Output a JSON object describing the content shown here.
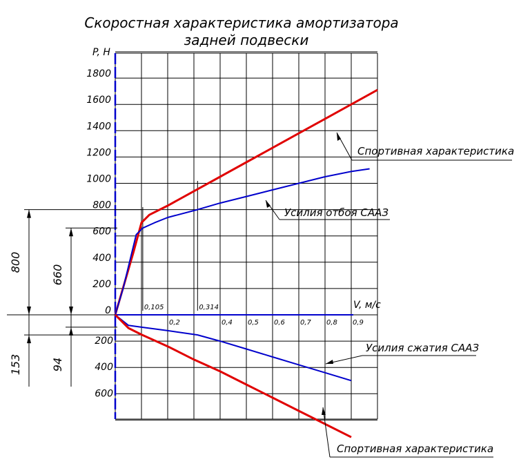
{
  "chart_data": {
    "type": "line",
    "title": "Скоростная характеристика амортизатора",
    "subtitle": "задней подвески",
    "ylabel": "P, Н",
    "xlabel": "V, м/с",
    "xlim": [
      0,
      1.0
    ],
    "ylim": [
      -800,
      2000
    ],
    "grid": true,
    "y_ticks_positive": [
      "1800",
      "1600",
      "1400",
      "1200",
      "1000",
      "800",
      "600",
      "400",
      "200",
      "0"
    ],
    "y_ticks_negative": [
      "200",
      "400",
      "600"
    ],
    "x_ticks": [
      "0,105",
      "0,2",
      "0,314",
      "0,4",
      "0,5",
      "0,6",
      "0,7",
      "0,8",
      "0,9"
    ],
    "x_ticks_values": [
      0.105,
      0.2,
      0.314,
      0.4,
      0.5,
      0.6,
      0.7,
      0.8,
      0.9
    ],
    "series": [
      {
        "name": "Спортивная характеристика",
        "color": "#e00000",
        "x": [
          0,
          0.07,
          0.1,
          0.13,
          0.2,
          0.3,
          0.4,
          0.5,
          0.6,
          0.7,
          0.8,
          0.9,
          1.0
        ],
        "y": [
          0,
          480,
          700,
          760,
          830,
          940,
          1050,
          1160,
          1270,
          1380,
          1490,
          1600,
          1710
        ]
      },
      {
        "name": "Усилия отбоя СААЗ",
        "color": "#0000cc",
        "x": [
          0,
          0.03,
          0.08,
          0.105,
          0.15,
          0.2,
          0.314,
          0.4,
          0.5,
          0.6,
          0.7,
          0.8,
          0.9,
          0.97
        ],
        "y": [
          0,
          200,
          610,
          660,
          700,
          740,
          800,
          850,
          900,
          950,
          1000,
          1050,
          1090,
          1110
        ]
      },
      {
        "name": "Усилия сжатия СААЗ",
        "color": "#0000cc",
        "x": [
          0,
          0.05,
          0.1,
          0.2,
          0.314,
          0.4,
          0.5,
          0.6,
          0.7,
          0.8,
          0.9
        ],
        "y": [
          0,
          -80,
          -94,
          -120,
          -153,
          -200,
          -260,
          -320,
          -380,
          -440,
          -500
        ]
      },
      {
        "name": "Спортивная характеристика",
        "color": "#e00000",
        "x": [
          0,
          0.05,
          0.1,
          0.2,
          0.3,
          0.4,
          0.5,
          0.6,
          0.7,
          0.8,
          0.9
        ],
        "y": [
          0,
          -100,
          -150,
          -240,
          -340,
          -430,
          -530,
          -630,
          -730,
          -830,
          -930
        ]
      }
    ],
    "x_axis_line_color": "#0000cc",
    "dimension_labels": [
      "800",
      "660",
      "153",
      "94"
    ],
    "annotations": [
      "Спортивная характеристика",
      "Усилия отбоя СААЗ",
      "Усилия сжатия СААЗ",
      "Спортивная характеристика"
    ]
  }
}
